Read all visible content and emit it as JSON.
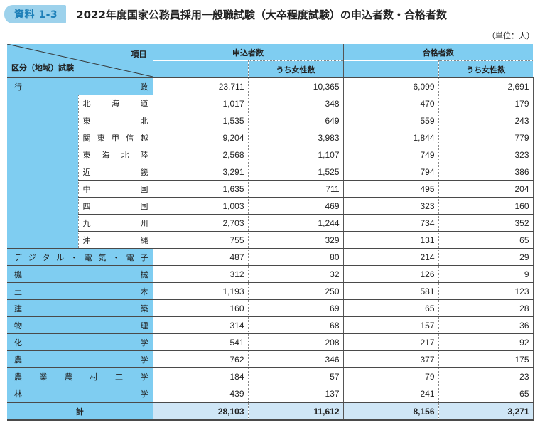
{
  "header": {
    "badge": "資料 1-3",
    "title": "2022年度国家公務員採用一般職試験（大卒程度試験）の申込者数・合格者数",
    "unit": "（単位：人）"
  },
  "table": {
    "corner_top": "項目",
    "corner_bottom": "区分（地域）試験",
    "group1": "申込者数",
    "group2": "合格者数",
    "subcol": "うち女性数",
    "rows": [
      {
        "type": "top",
        "label": [
          "行",
          "政"
        ],
        "v": [
          "23,711",
          "10,365",
          "6,099",
          "2,691"
        ]
      },
      {
        "type": "sub",
        "label": [
          "北",
          "海",
          "道"
        ],
        "v": [
          "1,017",
          "348",
          "470",
          "179"
        ]
      },
      {
        "type": "sub",
        "label": [
          "東",
          "北"
        ],
        "v": [
          "1,535",
          "649",
          "559",
          "243"
        ]
      },
      {
        "type": "sub",
        "label": [
          "関",
          "東",
          "甲",
          "信",
          "越"
        ],
        "v": [
          "9,204",
          "3,983",
          "1,844",
          "779"
        ]
      },
      {
        "type": "sub",
        "label": [
          "東",
          "海",
          "北",
          "陸"
        ],
        "v": [
          "2,568",
          "1,107",
          "749",
          "323"
        ]
      },
      {
        "type": "sub",
        "label": [
          "近",
          "畿"
        ],
        "v": [
          "3,291",
          "1,525",
          "794",
          "386"
        ]
      },
      {
        "type": "sub",
        "label": [
          "中",
          "国"
        ],
        "v": [
          "1,635",
          "711",
          "495",
          "204"
        ]
      },
      {
        "type": "sub",
        "label": [
          "四",
          "国"
        ],
        "v": [
          "1,003",
          "469",
          "323",
          "160"
        ]
      },
      {
        "type": "sub",
        "label": [
          "九",
          "州"
        ],
        "v": [
          "2,703",
          "1,244",
          "734",
          "352"
        ]
      },
      {
        "type": "sub",
        "label": [
          "沖",
          "縄"
        ],
        "v": [
          "755",
          "329",
          "131",
          "65"
        ]
      },
      {
        "type": "full",
        "label": [
          "デ",
          "ジ",
          "タ",
          "ル",
          "・",
          "電",
          "気",
          "・",
          "電",
          "子"
        ],
        "v": [
          "487",
          "80",
          "214",
          "29"
        ]
      },
      {
        "type": "full",
        "label": [
          "機",
          "械"
        ],
        "v": [
          "312",
          "32",
          "126",
          "9"
        ]
      },
      {
        "type": "full",
        "label": [
          "土",
          "木"
        ],
        "v": [
          "1,193",
          "250",
          "581",
          "123"
        ]
      },
      {
        "type": "full",
        "label": [
          "建",
          "築"
        ],
        "v": [
          "160",
          "69",
          "65",
          "28"
        ]
      },
      {
        "type": "full",
        "label": [
          "物",
          "理"
        ],
        "v": [
          "314",
          "68",
          "157",
          "36"
        ]
      },
      {
        "type": "full",
        "label": [
          "化",
          "学"
        ],
        "v": [
          "541",
          "208",
          "217",
          "92"
        ]
      },
      {
        "type": "full",
        "label": [
          "農",
          "学"
        ],
        "v": [
          "762",
          "346",
          "377",
          "175"
        ]
      },
      {
        "type": "full",
        "label": [
          "農",
          "業",
          "農",
          "村",
          "工",
          "学"
        ],
        "v": [
          "184",
          "57",
          "79",
          "23"
        ]
      },
      {
        "type": "full",
        "label": [
          "林",
          "学"
        ],
        "v": [
          "439",
          "137",
          "241",
          "65"
        ]
      }
    ],
    "total": {
      "label": "計",
      "v": [
        "28,103",
        "11,612",
        "8,156",
        "3,271"
      ]
    }
  }
}
